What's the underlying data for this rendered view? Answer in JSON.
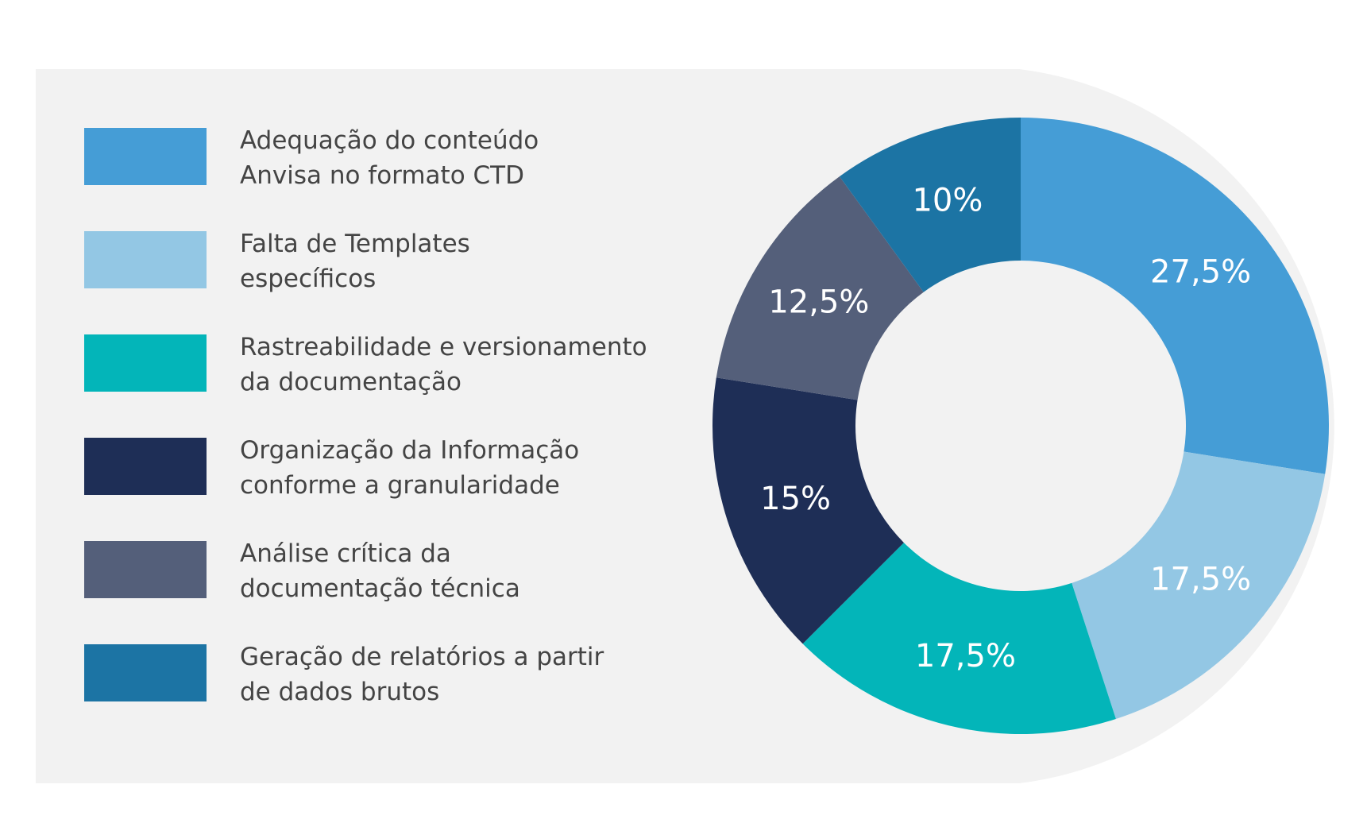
{
  "chart_data": {
    "type": "pie",
    "donut": true,
    "background_panel": "#f2f2f2",
    "categories": [
      [
        "Adequação do conteúdo",
        "Anvisa no formato CTD"
      ],
      [
        "Falta de Templates",
        "específicos"
      ],
      [
        "Rastreabilidade e versionamento",
        "da documentação"
      ],
      [
        "Organização da Informação",
        "conforme a granularidade"
      ],
      [
        "Análise crítica da",
        "documentação técnica"
      ],
      [
        "Geração de relatórios a partir",
        "de dados brutos"
      ]
    ],
    "values": [
      27.5,
      17.5,
      17.5,
      15,
      12.5,
      10
    ],
    "value_labels": [
      "27,5%",
      "17,5%",
      "17,5%",
      "15%",
      "12,5%",
      "10%"
    ],
    "colors": [
      "#459dd6",
      "#93c7e4",
      "#03b5b9",
      "#1e2e56",
      "#545f7a",
      "#1c74a4"
    ],
    "start_angle_deg": 0,
    "direction": "clockwise",
    "legend_position": "left"
  }
}
